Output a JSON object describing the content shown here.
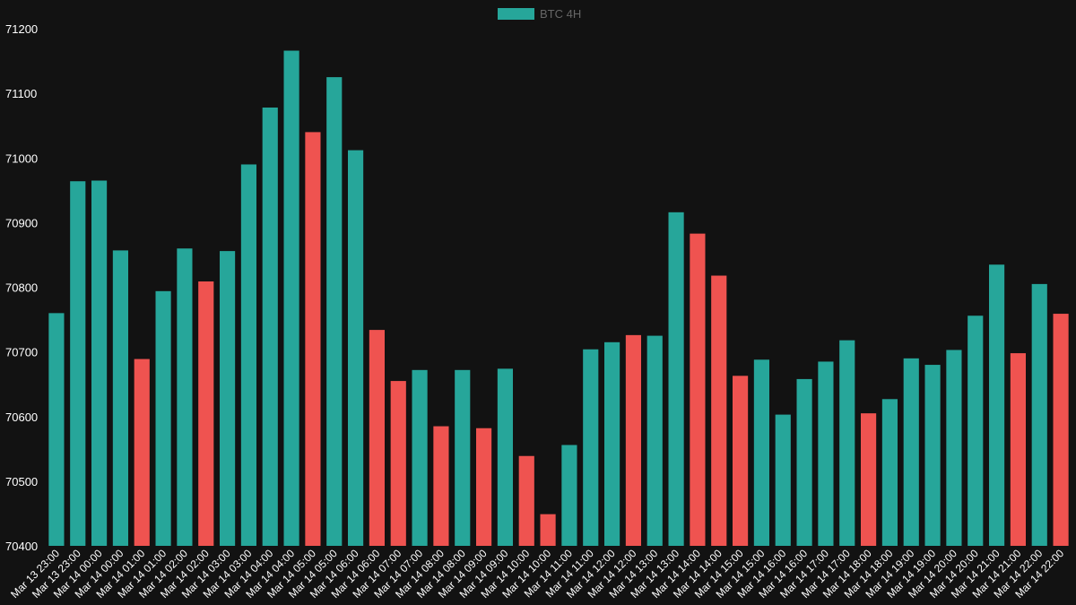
{
  "chart_data": {
    "type": "bar",
    "title": "",
    "xlabel": "",
    "ylabel": "",
    "ylim": [
      70400,
      71200
    ],
    "yticks": [
      70400,
      70500,
      70600,
      70700,
      70800,
      70900,
      71000,
      71100,
      71200
    ],
    "grid": false,
    "legend": {
      "position": "top-center",
      "label": "BTC 4H"
    },
    "colors": {
      "up": "#26a69a",
      "down": "#ef5350",
      "background": "#121212"
    },
    "categories": [
      "Mar 13 23:00",
      "Mar 13 23:00",
      "Mar 14 00:00",
      "Mar 14 00:00",
      "Mar 14 01:00",
      "Mar 14 01:00",
      "Mar 14 02:00",
      "Mar 14 02:00",
      "Mar 14 03:00",
      "Mar 14 03:00",
      "Mar 14 04:00",
      "Mar 14 04:00",
      "Mar 14 05:00",
      "Mar 14 05:00",
      "Mar 14 06:00",
      "Mar 14 06:00",
      "Mar 14 07:00",
      "Mar 14 07:00",
      "Mar 14 08:00",
      "Mar 14 08:00",
      "Mar 14 09:00",
      "Mar 14 09:00",
      "Mar 14 10:00",
      "Mar 14 10:00",
      "Mar 14 11:00",
      "Mar 14 11:00",
      "Mar 14 12:00",
      "Mar 14 12:00",
      "Mar 14 13:00",
      "Mar 14 13:00",
      "Mar 14 14:00",
      "Mar 14 14:00",
      "Mar 14 15:00",
      "Mar 14 15:00",
      "Mar 14 16:00",
      "Mar 14 16:00",
      "Mar 14 17:00",
      "Mar 14 17:00",
      "Mar 14 18:00",
      "Mar 14 18:00",
      "Mar 14 19:00",
      "Mar 14 19:00",
      "Mar 14 20:00",
      "Mar 14 20:00",
      "Mar 14 21:00",
      "Mar 14 21:00",
      "Mar 14 22:00",
      "Mar 14 22:00"
    ],
    "series": [
      {
        "name": "BTC 4H",
        "values": [
          70760,
          70964,
          70965,
          70857,
          70689,
          70794,
          70860,
          70809,
          70856,
          70990,
          71078,
          71166,
          71040,
          71125,
          71012,
          70734,
          70655,
          70672,
          70585,
          70672,
          70582,
          70674,
          70539,
          70449,
          70556,
          70704,
          70715,
          70726,
          70725,
          70916,
          70883,
          70818,
          70663,
          70688,
          70603,
          70658,
          70685,
          70718,
          70605,
          70627,
          70690,
          70680,
          70703,
          70756,
          70835,
          70698,
          70805,
          70759
        ],
        "direction": [
          "up",
          "up",
          "up",
          "up",
          "down",
          "up",
          "up",
          "down",
          "up",
          "up",
          "up",
          "up",
          "down",
          "up",
          "up",
          "down",
          "down",
          "up",
          "down",
          "up",
          "down",
          "up",
          "down",
          "down",
          "up",
          "up",
          "up",
          "down",
          "up",
          "up",
          "down",
          "down",
          "down",
          "up",
          "up",
          "up",
          "up",
          "up",
          "down",
          "up",
          "up",
          "up",
          "up",
          "up",
          "up",
          "down",
          "up",
          "down"
        ]
      }
    ]
  }
}
